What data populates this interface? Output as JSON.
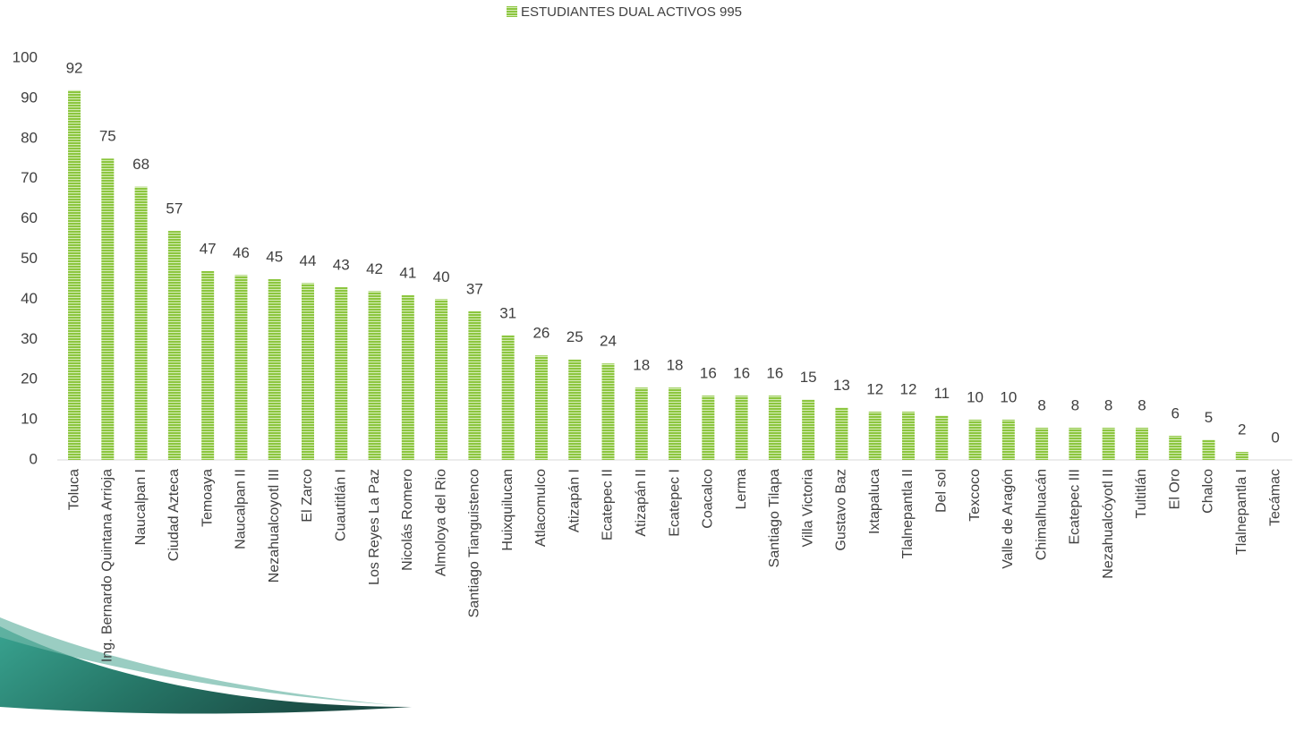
{
  "chart_data": {
    "type": "bar",
    "categories": [
      "Toluca",
      "Ing. Bernardo Quintana Arrioja",
      "Naucalpan I",
      "Ciudad Azteca",
      "Temoaya",
      "Naucalpan II",
      "Nezahualcoyotl III",
      "El Zarco",
      "Cuautitlán I",
      "Los Reyes La Paz",
      "Nicolás Romero",
      "Almoloya del Rio",
      "Santiago Tianguistenco",
      "Huixquilucan",
      "Atlacomulco",
      "Atizapán I",
      "Ecatepec II",
      "Atizapán II",
      "Ecatepec I",
      "Coacalco",
      "Lerma",
      "Santiago Tilapa",
      "Villa Victoria",
      "Gustavo Baz",
      "Ixtapaluca",
      "Tlalnepantla II",
      "Del sol",
      "Texcoco",
      "Valle de Aragón",
      "Chimalhuacán",
      "Ecatepec III",
      "Nezahualcóyotl II",
      "Tultitlán",
      "El Oro",
      "Chalco",
      "Tlalnepantla I",
      "Tecámac"
    ],
    "series": [
      {
        "name": "ESTUDIANTES DUAL ACTIVOS 995",
        "color": "#8cc63f",
        "values": [
          92,
          75,
          68,
          57,
          47,
          46,
          45,
          44,
          43,
          42,
          41,
          40,
          37,
          31,
          26,
          25,
          24,
          18,
          18,
          16,
          16,
          16,
          15,
          13,
          12,
          12,
          11,
          10,
          10,
          8,
          8,
          8,
          8,
          6,
          5,
          2,
          0
        ]
      }
    ],
    "ylim": [
      0,
      100
    ],
    "yticks": [
      0,
      10,
      20,
      30,
      40,
      50,
      60,
      70,
      80,
      90,
      100
    ],
    "legend": "top",
    "data_labels": true,
    "grid": false
  }
}
